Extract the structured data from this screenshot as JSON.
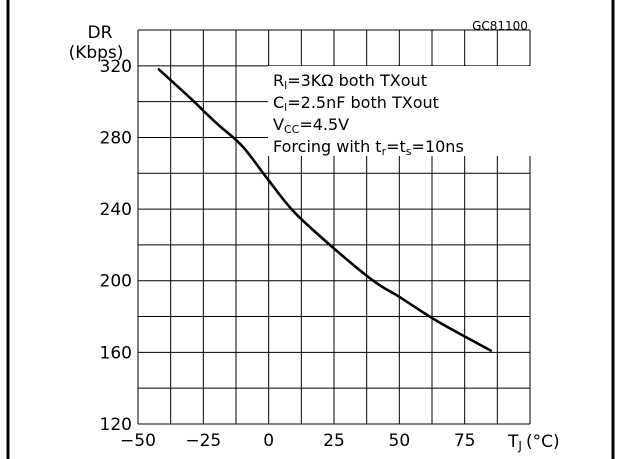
{
  "chart_data": {
    "type": "line",
    "figure_code": "GC81100",
    "ylabel": {
      "line1": "DR",
      "line2": "(Kbps)"
    },
    "xlabel": {
      "main": "T",
      "sub": "J",
      "unit": "(°C)"
    },
    "xlim": [
      -50,
      100
    ],
    "ylim": [
      120,
      340
    ],
    "xticks": [
      -50,
      -25,
      0,
      25,
      50,
      75
    ],
    "yticks": [
      120,
      160,
      200,
      240,
      280,
      320
    ],
    "grid": true,
    "legend": "none",
    "annotations": {
      "line1": {
        "a": "R",
        "a_sub": "l",
        "b": "=3KΩ  both  TXout"
      },
      "line2": {
        "a": "C",
        "a_sub": "l",
        "b": "=2.5nF both  TXout"
      },
      "line3": {
        "a": "V",
        "a_sub": "CC",
        "b": "=4.5V"
      },
      "line4": {
        "a": "Forcing  with  t",
        "a_sub": "r",
        "b": "=t",
        "b_sub": "s",
        "c": "=10ns"
      }
    },
    "series": [
      {
        "x": [
          -42,
          -30,
          -20,
          -10,
          0,
          10,
          25,
          40,
          50,
          65,
          85
        ],
        "y": [
          318,
          302,
          288,
          275,
          256,
          238,
          218,
          200,
          191,
          177,
          161
        ]
      }
    ]
  }
}
